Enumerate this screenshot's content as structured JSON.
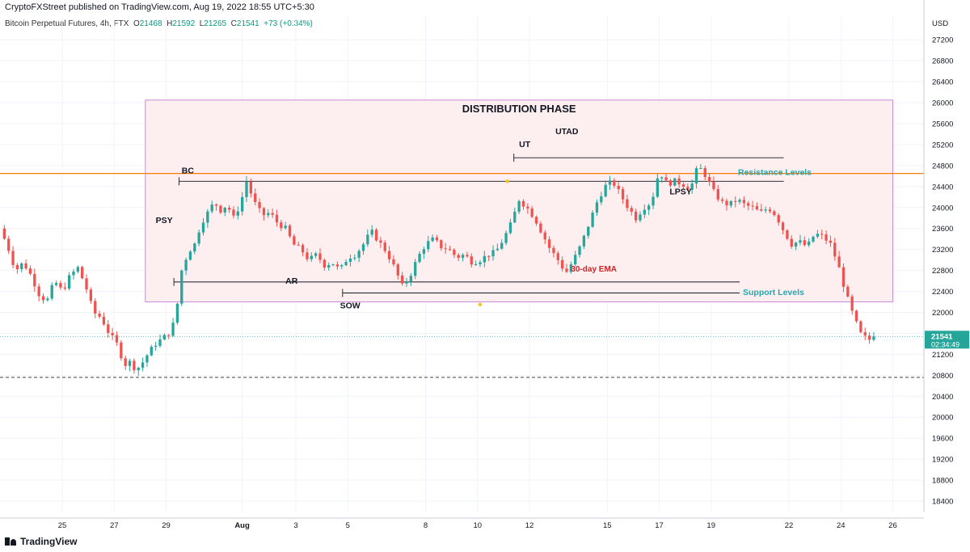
{
  "header": {
    "publisher": "CryptoFXStreet published on TradingView.com, Aug 19, 2022 18:55 UTC+5:30",
    "symbol": "Bitcoin Perpetual Futures, 4h, FTX",
    "o_label": "O",
    "o_val": "21468",
    "h_label": "H",
    "h_val": "21592",
    "l_label": "L",
    "l_val": "21265",
    "c_label": "C",
    "c_val": "21541",
    "change": "+73 (+0.34%)"
  },
  "brand": {
    "name": "TradingView"
  },
  "colors": {
    "up": "#26a69a",
    "down": "#ef5350",
    "box_fill": "#fdeef0",
    "box_border": "#c88ad8",
    "resistance": "#f57c00",
    "teal_text": "#26a8b0",
    "ema_text": "#c62828",
    "marker": "#f5c518"
  },
  "chart_data": {
    "type": "candlestick",
    "currency": "USD",
    "ylim": [
      18200,
      27650
    ],
    "y_ticks": [
      18400,
      18800,
      19200,
      19600,
      20000,
      20400,
      20800,
      21200,
      21600,
      22000,
      22400,
      22800,
      23200,
      23600,
      24000,
      24400,
      24800,
      25200,
      25600,
      26000,
      26400,
      26800,
      27200
    ],
    "x_ticks": [
      {
        "label": "25",
        "day": 25
      },
      {
        "label": "27",
        "day": 27
      },
      {
        "label": "29",
        "day": 29
      },
      {
        "label": "Aug",
        "day": 31.93
      },
      {
        "label": "3",
        "day": 34
      },
      {
        "label": "5",
        "day": 36
      },
      {
        "label": "8",
        "day": 39
      },
      {
        "label": "10",
        "day": 41
      },
      {
        "label": "12",
        "day": 43
      },
      {
        "label": "15",
        "day": 46
      },
      {
        "label": "17",
        "day": 48
      },
      {
        "label": "19",
        "day": 50
      },
      {
        "label": "22",
        "day": 53
      },
      {
        "label": "24",
        "day": 55
      },
      {
        "label": "26",
        "day": 57
      }
    ],
    "xlim": [
      22.6,
      58.2
    ],
    "path": [
      [
        22.6,
        23600
      ],
      [
        22.9,
        23250
      ],
      [
        23.2,
        22800
      ],
      [
        23.5,
        22950
      ],
      [
        23.8,
        22700
      ],
      [
        24.1,
        22350
      ],
      [
        24.4,
        22200
      ],
      [
        24.7,
        22600
      ],
      [
        25.0,
        22400
      ],
      [
        25.3,
        22700
      ],
      [
        25.6,
        22850
      ],
      [
        25.9,
        22500
      ],
      [
        26.2,
        22000
      ],
      [
        26.5,
        21900
      ],
      [
        26.8,
        21600
      ],
      [
        27.1,
        21400
      ],
      [
        27.4,
        21000
      ],
      [
        27.6,
        21050
      ],
      [
        27.85,
        20900
      ],
      [
        28.1,
        21050
      ],
      [
        28.35,
        21250
      ],
      [
        28.6,
        21400
      ],
      [
        28.85,
        21500
      ],
      [
        29.1,
        21600
      ],
      [
        29.35,
        21850
      ],
      [
        29.6,
        22800
      ],
      [
        29.85,
        23150
      ],
      [
        30.1,
        23300
      ],
      [
        30.35,
        23700
      ],
      [
        30.6,
        23900
      ],
      [
        30.85,
        24100
      ],
      [
        31.1,
        23950
      ],
      [
        31.35,
        24050
      ],
      [
        31.6,
        23800
      ],
      [
        31.85,
        24050
      ],
      [
        32.1,
        24500
      ],
      [
        32.4,
        24100
      ],
      [
        32.7,
        23850
      ],
      [
        33.0,
        23900
      ],
      [
        33.3,
        23700
      ],
      [
        33.6,
        23600
      ],
      [
        33.9,
        23300
      ],
      [
        34.2,
        23200
      ],
      [
        34.5,
        23000
      ],
      [
        34.8,
        23100
      ],
      [
        35.1,
        22900
      ],
      [
        35.4,
        22950
      ],
      [
        35.7,
        22800
      ],
      [
        36.0,
        23050
      ],
      [
        36.3,
        23100
      ],
      [
        36.6,
        23300
      ],
      [
        36.9,
        23550
      ],
      [
        37.2,
        23350
      ],
      [
        37.5,
        23150
      ],
      [
        37.8,
        22850
      ],
      [
        38.1,
        22500
      ],
      [
        38.4,
        22700
      ],
      [
        38.7,
        23050
      ],
      [
        39.0,
        23300
      ],
      [
        39.3,
        23400
      ],
      [
        39.6,
        23250
      ],
      [
        39.9,
        23200
      ],
      [
        40.2,
        23050
      ],
      [
        40.5,
        23100
      ],
      [
        40.8,
        22950
      ],
      [
        41.1,
        23000
      ],
      [
        41.4,
        23100
      ],
      [
        41.7,
        23150
      ],
      [
        42.0,
        23400
      ],
      [
        42.3,
        23700
      ],
      [
        42.6,
        24150
      ],
      [
        42.9,
        24000
      ],
      [
        43.2,
        23800
      ],
      [
        43.5,
        23500
      ],
      [
        43.8,
        23200
      ],
      [
        44.1,
        23000
      ],
      [
        44.4,
        22750
      ],
      [
        44.7,
        23000
      ],
      [
        45.0,
        23300
      ],
      [
        45.3,
        23700
      ],
      [
        45.6,
        24100
      ],
      [
        45.9,
        24400
      ],
      [
        46.2,
        24500
      ],
      [
        46.5,
        24250
      ],
      [
        46.8,
        24000
      ],
      [
        47.1,
        23800
      ],
      [
        47.4,
        24000
      ],
      [
        47.7,
        24100
      ],
      [
        48.0,
        24700
      ],
      [
        48.3,
        24450
      ],
      [
        48.6,
        24500
      ],
      [
        48.9,
        24450
      ],
      [
        49.2,
        24350
      ],
      [
        49.5,
        24800
      ],
      [
        49.8,
        24600
      ],
      [
        50.1,
        24300
      ],
      [
        50.4,
        24100
      ],
      [
        50.7,
        24050
      ],
      [
        51.0,
        24150
      ],
      [
        51.3,
        24050
      ],
      [
        51.6,
        24000
      ],
      [
        51.9,
        23900
      ],
      [
        52.2,
        24000
      ],
      [
        52.5,
        23850
      ],
      [
        52.8,
        23550
      ],
      [
        53.1,
        23300
      ],
      [
        53.4,
        23350
      ],
      [
        53.7,
        23250
      ],
      [
        54.0,
        23500
      ],
      [
        54.3,
        23450
      ],
      [
        54.6,
        23300
      ],
      [
        54.9,
        22900
      ],
      [
        55.2,
        22350
      ],
      [
        55.5,
        21900
      ],
      [
        55.8,
        21550
      ],
      [
        56.1,
        21480
      ],
      [
        56.35,
        21541
      ]
    ],
    "annotations": {
      "title": "DISTRIBUTION PHASE",
      "labels": [
        {
          "text": "PSY",
          "day": 28.6,
          "price": 23700
        },
        {
          "text": "BC",
          "day": 29.6,
          "price": 24650
        },
        {
          "text": "AR",
          "day": 33.6,
          "price": 22550
        },
        {
          "text": "SOW",
          "day": 35.7,
          "price": 22080
        },
        {
          "text": "UT",
          "day": 42.6,
          "price": 25150
        },
        {
          "text": "UTAD",
          "day": 44.0,
          "price": 25400
        },
        {
          "text": "LPSY",
          "day": 48.4,
          "price": 24250
        },
        {
          "text": "30-day EMA",
          "day": 44.6,
          "price": 22780
        }
      ],
      "resistance_label": "Resistance Levels",
      "support_label": "Support Levels",
      "distribution_box": {
        "x0": 28.2,
        "x1": 57.0,
        "y0": 22200,
        "y1": 26050
      },
      "resistance_price": 24650,
      "lines": [
        {
          "x0": 29.5,
          "x1": 52.8,
          "price": 24500
        },
        {
          "x0": 42.4,
          "x1": 52.8,
          "price": 24950
        },
        {
          "x0": 29.3,
          "x1": 51.1,
          "price": 22580
        },
        {
          "x0": 35.8,
          "x1": 51.1,
          "price": 22370
        }
      ],
      "dashed_support": 20760,
      "markers": [
        {
          "day": 42.15,
          "price": 24500
        },
        {
          "day": 41.1,
          "price": 22150
        }
      ]
    },
    "last_price": {
      "value": "21541",
      "countdown": "02:34:49",
      "price": 21541
    }
  }
}
